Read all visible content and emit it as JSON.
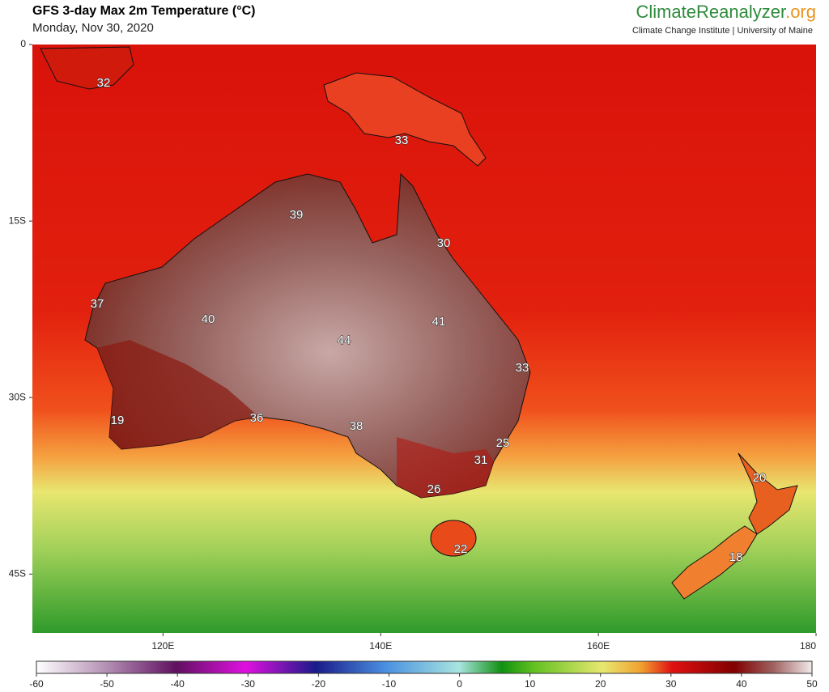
{
  "header": {
    "title": "GFS 3-day Max 2m Temperature (°C)",
    "subtitle": "Monday, Nov 30, 2020",
    "brand": "ClimateReanalyzer",
    "brand_suffix": ".org",
    "tagline": "Climate Change Institute | University of Maine"
  },
  "map": {
    "lonlim": [
      108,
      180
    ],
    "latlim": [
      -50,
      0
    ],
    "lat_ticks": [
      {
        "value": 0,
        "label": "0"
      },
      {
        "value": -15,
        "label": "15S"
      },
      {
        "value": -30,
        "label": "30S"
      },
      {
        "value": -45,
        "label": "45S"
      }
    ],
    "lon_ticks": [
      {
        "value": 120,
        "label": "120E"
      },
      {
        "value": 140,
        "label": "140E"
      },
      {
        "value": 160,
        "label": "160E"
      },
      {
        "value": 180,
        "label": "180"
      }
    ],
    "temperature_labels": [
      32,
      33,
      39,
      30,
      37,
      40,
      41,
      44,
      33,
      19,
      36,
      38,
      25,
      31,
      26,
      20,
      18,
      22
    ]
  },
  "colorbar": {
    "range": [
      -60,
      50
    ],
    "ticks": [
      -60,
      -50,
      -40,
      -30,
      -20,
      -10,
      0,
      10,
      20,
      30,
      40,
      50
    ]
  }
}
